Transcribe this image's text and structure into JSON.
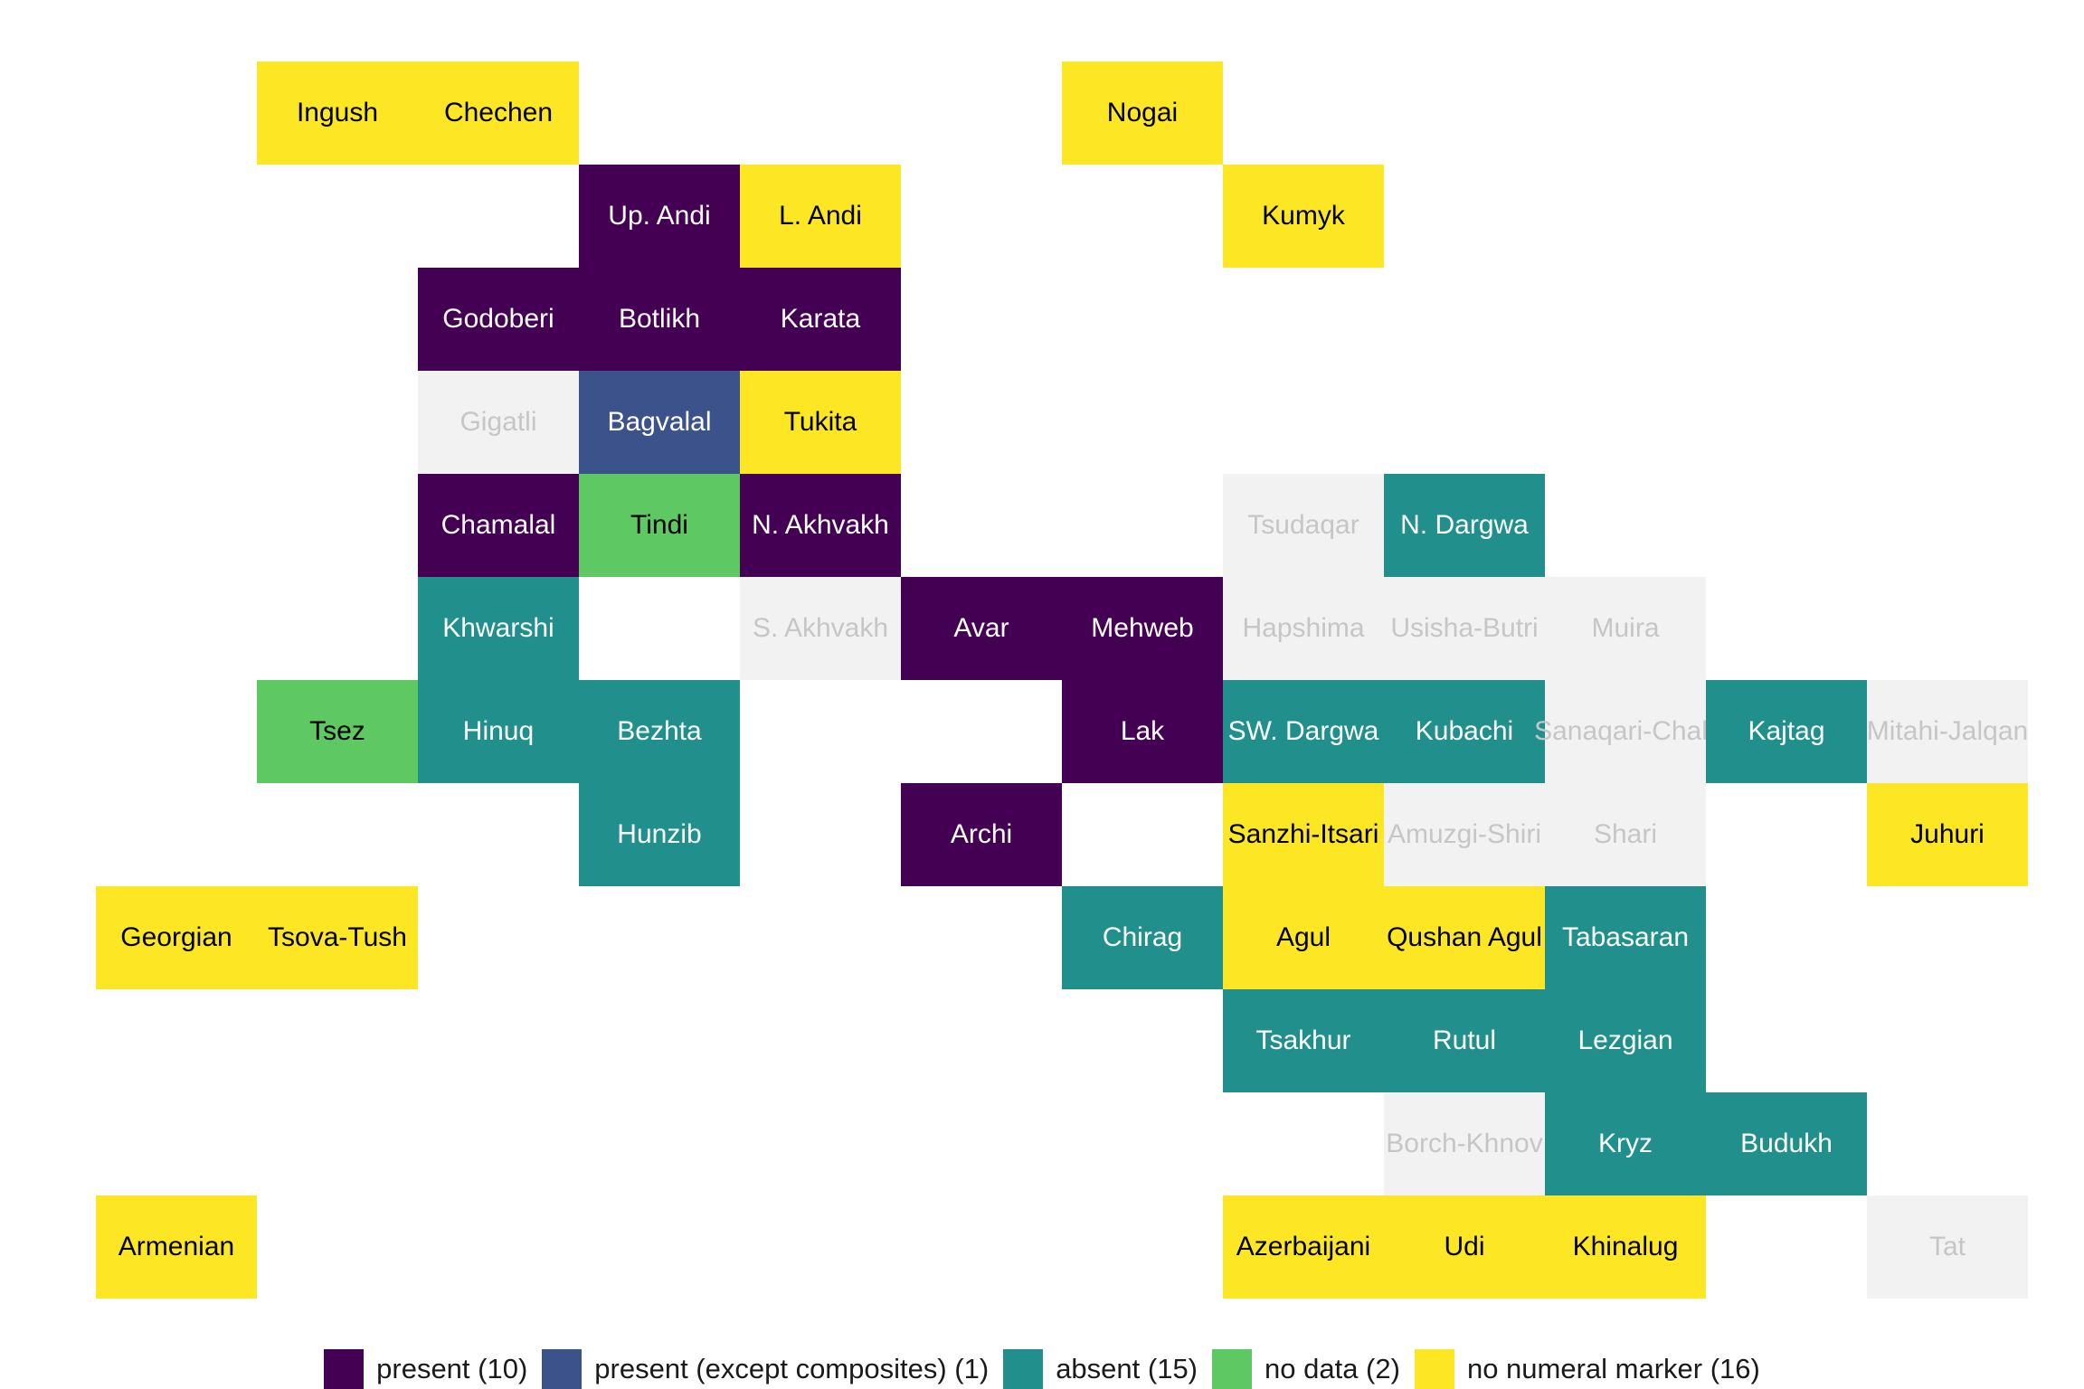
{
  "categories": [
    {
      "key": "present",
      "label": "present (10)",
      "color": "#440154"
    },
    {
      "key": "present_exc",
      "label": "present (except composites) (1)",
      "color": "#3b528b"
    },
    {
      "key": "absent",
      "label": "absent (15)",
      "color": "#21908c"
    },
    {
      "key": "nodata",
      "label": "no data (2)",
      "color": "#5ec962"
    },
    {
      "key": "nomarker",
      "label": "no numeral marker (16)",
      "color": "#fde725"
    },
    {
      "key": "na",
      "label": "",
      "color": "#f2f2f2"
    }
  ],
  "cells": [
    {
      "name": "Ingush",
      "col": 1,
      "row": 0,
      "value": "nomarker"
    },
    {
      "name": "Chechen",
      "col": 2,
      "row": 0,
      "value": "nomarker"
    },
    {
      "name": "Nogai",
      "col": 6,
      "row": 0,
      "value": "nomarker"
    },
    {
      "name": "Up. Andi",
      "col": 3,
      "row": 1,
      "value": "present"
    },
    {
      "name": "L. Andi",
      "col": 4,
      "row": 1,
      "value": "nomarker"
    },
    {
      "name": "Kumyk",
      "col": 7,
      "row": 1,
      "value": "nomarker"
    },
    {
      "name": "Godoberi",
      "col": 2,
      "row": 2,
      "value": "present"
    },
    {
      "name": "Botlikh",
      "col": 3,
      "row": 2,
      "value": "present"
    },
    {
      "name": "Karata",
      "col": 4,
      "row": 2,
      "value": "present"
    },
    {
      "name": "Gigatli",
      "col": 2,
      "row": 3,
      "value": "na"
    },
    {
      "name": "Bagvalal",
      "col": 3,
      "row": 3,
      "value": "present_exc"
    },
    {
      "name": "Tukita",
      "col": 4,
      "row": 3,
      "value": "nomarker"
    },
    {
      "name": "Chamalal",
      "col": 2,
      "row": 4,
      "value": "present"
    },
    {
      "name": "Tindi",
      "col": 3,
      "row": 4,
      "value": "nodata"
    },
    {
      "name": "N. Akhvakh",
      "col": 4,
      "row": 4,
      "value": "present"
    },
    {
      "name": "Tsudaqar",
      "col": 7,
      "row": 4,
      "value": "na"
    },
    {
      "name": "N. Dargwa",
      "col": 8,
      "row": 4,
      "value": "absent"
    },
    {
      "name": "Khwarshi",
      "col": 2,
      "row": 5,
      "value": "absent"
    },
    {
      "name": "S. Akhvakh",
      "col": 4,
      "row": 5,
      "value": "na"
    },
    {
      "name": "Avar",
      "col": 5,
      "row": 5,
      "value": "present"
    },
    {
      "name": "Mehweb",
      "col": 6,
      "row": 5,
      "value": "present"
    },
    {
      "name": "Hapshima",
      "col": 7,
      "row": 5,
      "value": "na"
    },
    {
      "name": "Usisha-Butri",
      "col": 8,
      "row": 5,
      "value": "na"
    },
    {
      "name": "Muira",
      "col": 9,
      "row": 5,
      "value": "na"
    },
    {
      "name": "Tsez",
      "col": 1,
      "row": 6,
      "value": "nodata"
    },
    {
      "name": "Hinuq",
      "col": 2,
      "row": 6,
      "value": "absent"
    },
    {
      "name": "Bezhta",
      "col": 3,
      "row": 6,
      "value": "absent"
    },
    {
      "name": "Lak",
      "col": 6,
      "row": 6,
      "value": "present"
    },
    {
      "name": "SW. Dargwa",
      "col": 7,
      "row": 6,
      "value": "absent"
    },
    {
      "name": "Kubachi",
      "col": 8,
      "row": 6,
      "value": "absent"
    },
    {
      "name": "Sanaqari-Chah",
      "col": 9,
      "row": 6,
      "value": "na"
    },
    {
      "name": "Kajtag",
      "col": 10,
      "row": 6,
      "value": "absent"
    },
    {
      "name": "Mitahi-Jalqan",
      "col": 11,
      "row": 6,
      "value": "na"
    },
    {
      "name": "Hunzib",
      "col": 3,
      "row": 7,
      "value": "absent"
    },
    {
      "name": "Archi",
      "col": 5,
      "row": 7,
      "value": "present"
    },
    {
      "name": "Sanzhi-Itsari",
      "col": 7,
      "row": 7,
      "value": "nomarker"
    },
    {
      "name": "Amuzgi-Shiri",
      "col": 8,
      "row": 7,
      "value": "na"
    },
    {
      "name": "Shari",
      "col": 9,
      "row": 7,
      "value": "na"
    },
    {
      "name": "Juhuri",
      "col": 11,
      "row": 7,
      "value": "nomarker"
    },
    {
      "name": "Georgian",
      "col": 0,
      "row": 8,
      "value": "nomarker"
    },
    {
      "name": "Tsova-Tush",
      "col": 1,
      "row": 8,
      "value": "nomarker"
    },
    {
      "name": "Chirag",
      "col": 6,
      "row": 8,
      "value": "absent"
    },
    {
      "name": "Agul",
      "col": 7,
      "row": 8,
      "value": "nomarker"
    },
    {
      "name": "Qushan Agul",
      "col": 8,
      "row": 8,
      "value": "nomarker"
    },
    {
      "name": "Tabasaran",
      "col": 9,
      "row": 8,
      "value": "absent"
    },
    {
      "name": "Tsakhur",
      "col": 7,
      "row": 9,
      "value": "absent"
    },
    {
      "name": "Rutul",
      "col": 8,
      "row": 9,
      "value": "absent"
    },
    {
      "name": "Lezgian",
      "col": 9,
      "row": 9,
      "value": "absent"
    },
    {
      "name": "Borch-Khnov",
      "col": 8,
      "row": 10,
      "value": "na"
    },
    {
      "name": "Kryz",
      "col": 9,
      "row": 10,
      "value": "absent"
    },
    {
      "name": "Budukh",
      "col": 10,
      "row": 10,
      "value": "absent"
    },
    {
      "name": "Armenian",
      "col": 0,
      "row": 11,
      "value": "nomarker"
    },
    {
      "name": "Azerbaijani",
      "col": 7,
      "row": 11,
      "value": "nomarker"
    },
    {
      "name": "Udi",
      "col": 8,
      "row": 11,
      "value": "nomarker"
    },
    {
      "name": "Khinalug",
      "col": 9,
      "row": 11,
      "value": "nomarker"
    },
    {
      "name": "Tat",
      "col": 11,
      "row": 11,
      "value": "na"
    }
  ],
  "text_colors": {
    "light": "#ffffff",
    "dark": "#000000",
    "faded": "#c6c6c6"
  }
}
